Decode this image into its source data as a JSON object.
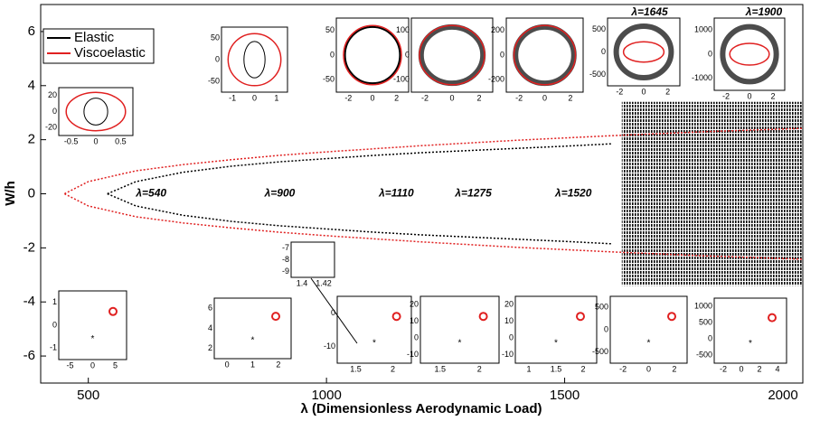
{
  "chart_data": {
    "type": "line",
    "xlabel": "λ (Dimensionless Aerodynamic Load)",
    "ylabel": "W/h",
    "xlim": [
      400,
      2000
    ],
    "ylim": [
      -7,
      7
    ],
    "xticks": [
      500,
      1000,
      1500,
      2000
    ],
    "yticks": [
      -6,
      -4,
      -2,
      0,
      2,
      4,
      6
    ],
    "legend": "upper left",
    "series": [
      {
        "name": "Elastic",
        "color": "#000000",
        "x": [
          540,
          600,
          700,
          800,
          900,
          1000,
          1100,
          1200,
          1300,
          1400,
          1500,
          1600
        ],
        "values": [
          0,
          0.45,
          0.8,
          1.02,
          1.18,
          1.3,
          1.42,
          1.52,
          1.6,
          1.68,
          1.76,
          1.85
        ],
        "lower": [
          0,
          -0.45,
          -0.8,
          -1.02,
          -1.18,
          -1.3,
          -1.42,
          -1.52,
          -1.6,
          -1.68,
          -1.76,
          -1.85
        ]
      },
      {
        "name": "Viscoelastic",
        "color": "#e02020",
        "x": [
          450,
          500,
          600,
          700,
          800,
          900,
          1000,
          1200,
          1400,
          1600,
          1800,
          2000
        ],
        "values": [
          0,
          0.45,
          0.85,
          1.08,
          1.26,
          1.42,
          1.55,
          1.78,
          1.98,
          2.15,
          2.3,
          2.42
        ],
        "lower": [
          0,
          -0.45,
          -0.85,
          -1.08,
          -1.26,
          -1.42,
          -1.55,
          -1.78,
          -1.98,
          -2.15,
          -2.3,
          -2.42
        ]
      }
    ],
    "band": {
      "x": [
        1620,
        2000
      ],
      "values": [
        -3.4,
        3.4
      ]
    },
    "annotations": [
      {
        "text": "λ=540",
        "x": 600,
        "y": 0
      },
      {
        "text": "λ=900",
        "x": 870,
        "y": 0
      },
      {
        "text": "λ=1110",
        "x": 1110,
        "y": 0
      },
      {
        "text": "λ=1275",
        "x": 1270,
        "y": 0
      },
      {
        "text": "λ=1520",
        "x": 1480,
        "y": 0
      },
      {
        "text": "λ=1645",
        "x": 1640,
        "y": 6.7
      },
      {
        "text": "λ=1900",
        "x": 1880,
        "y": 6.7
      }
    ]
  },
  "insets": [
    {
      "xticks": [
        -0.5,
        0,
        0.5
      ],
      "yticks": [
        20,
        0,
        -20
      ]
    },
    {
      "xticks": [
        -1,
        0,
        1
      ],
      "yticks": [
        50,
        0,
        -50
      ]
    },
    {
      "xticks": [
        -2,
        0,
        2
      ],
      "yticks": [
        50,
        0,
        -50
      ]
    },
    {
      "xticks": [
        -2,
        0,
        2
      ],
      "yticks": [
        100,
        0,
        -100
      ]
    },
    {
      "xticks": [
        -2,
        0,
        2
      ],
      "yticks": [
        200,
        0,
        -200
      ]
    },
    {
      "xticks": [
        -2,
        0,
        2
      ],
      "yticks": [
        500,
        0,
        -500
      ]
    },
    {
      "xticks": [
        -2,
        0,
        2
      ],
      "yticks": [
        1000,
        0,
        -1000
      ]
    },
    {
      "xticks": [
        -5,
        0,
        5
      ],
      "yticks": [
        1,
        0,
        -1
      ]
    },
    {
      "xticks": [
        0,
        1,
        2
      ],
      "yticks": [
        6,
        4,
        2
      ]
    },
    {
      "xticks": [
        1.4,
        1.42
      ],
      "yticks": [
        -7,
        -8,
        -9
      ]
    },
    {
      "xticks": [
        1.5,
        2
      ],
      "yticks": [
        0,
        -10
      ]
    },
    {
      "xticks": [
        1.5,
        2
      ],
      "yticks": [
        20,
        10,
        0,
        -10
      ]
    },
    {
      "xticks": [
        1,
        1.5,
        2
      ],
      "yticks": [
        20,
        10,
        0,
        -10
      ]
    },
    {
      "xticks": [
        -2,
        0,
        2
      ],
      "yticks": [
        500,
        0,
        -500
      ]
    },
    {
      "xticks": [
        -2,
        0,
        2,
        4
      ],
      "yticks": [
        1000,
        500,
        0,
        -500
      ]
    }
  ]
}
